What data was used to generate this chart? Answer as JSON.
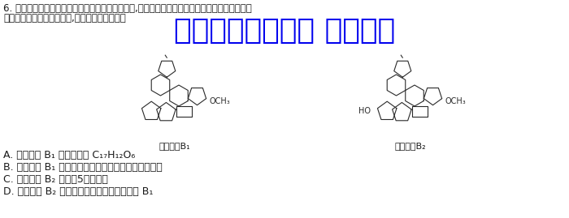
{
  "background_color": "#ffffff",
  "watermark_text": "微信公众号关注： 趣找答案",
  "watermark_color": "#0000ee",
  "watermark_fontsize": 26,
  "question_text_line1": "6. 黄曲霉常在水分含量较高的谷类作物中生长繁殖,并产生具有强致癌能力的黄曲霉素。两种黄曲",
  "question_text_line2": "霉素的结构简图如下图所示,下列说法不正确的是",
  "mol_label_left": "黄曲霉素B₁",
  "mol_label_right": "黄曲霉素B₂",
  "option_A": "A. 黄曲霉素 B₁ 的分子式为 C₁₇H₁₂O₆",
  "option_B": "B. 黄曲霉素 B₁ 能发生氧化反应、水解反应、加成反应",
  "option_C": "C. 黄曲霉素 B₂ 中含有5个手性碳",
  "option_D": "D. 黄曲霉素 B₂ 可通过消去反应得到黄曲霉素 B₁",
  "text_color": "#1a1a1a",
  "fontsize_question": 8.5,
  "fontsize_option": 9
}
